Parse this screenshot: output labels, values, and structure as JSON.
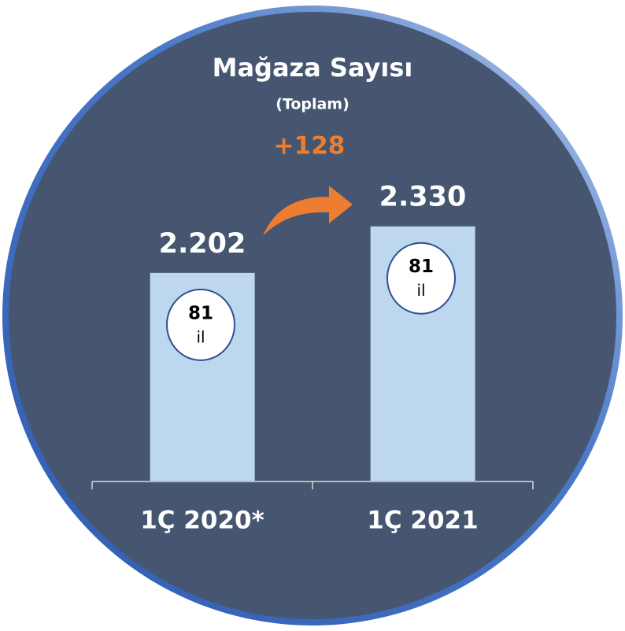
{
  "chart_data": {
    "type": "bar",
    "title": "Mağaza Sayısı",
    "subtitle": "(Toplam)",
    "annotation": "+128",
    "categories": [
      "1Ç 2020*",
      "1Ç 2021"
    ],
    "values": [
      2202,
      2330
    ],
    "value_labels": [
      "2.202",
      "2.330"
    ],
    "badges": [
      {
        "number": "81",
        "unit": "il"
      },
      {
        "number": "81",
        "unit": "il"
      }
    ],
    "color": "#bdd7ee",
    "ylim": [
      1630,
      2730
    ]
  }
}
